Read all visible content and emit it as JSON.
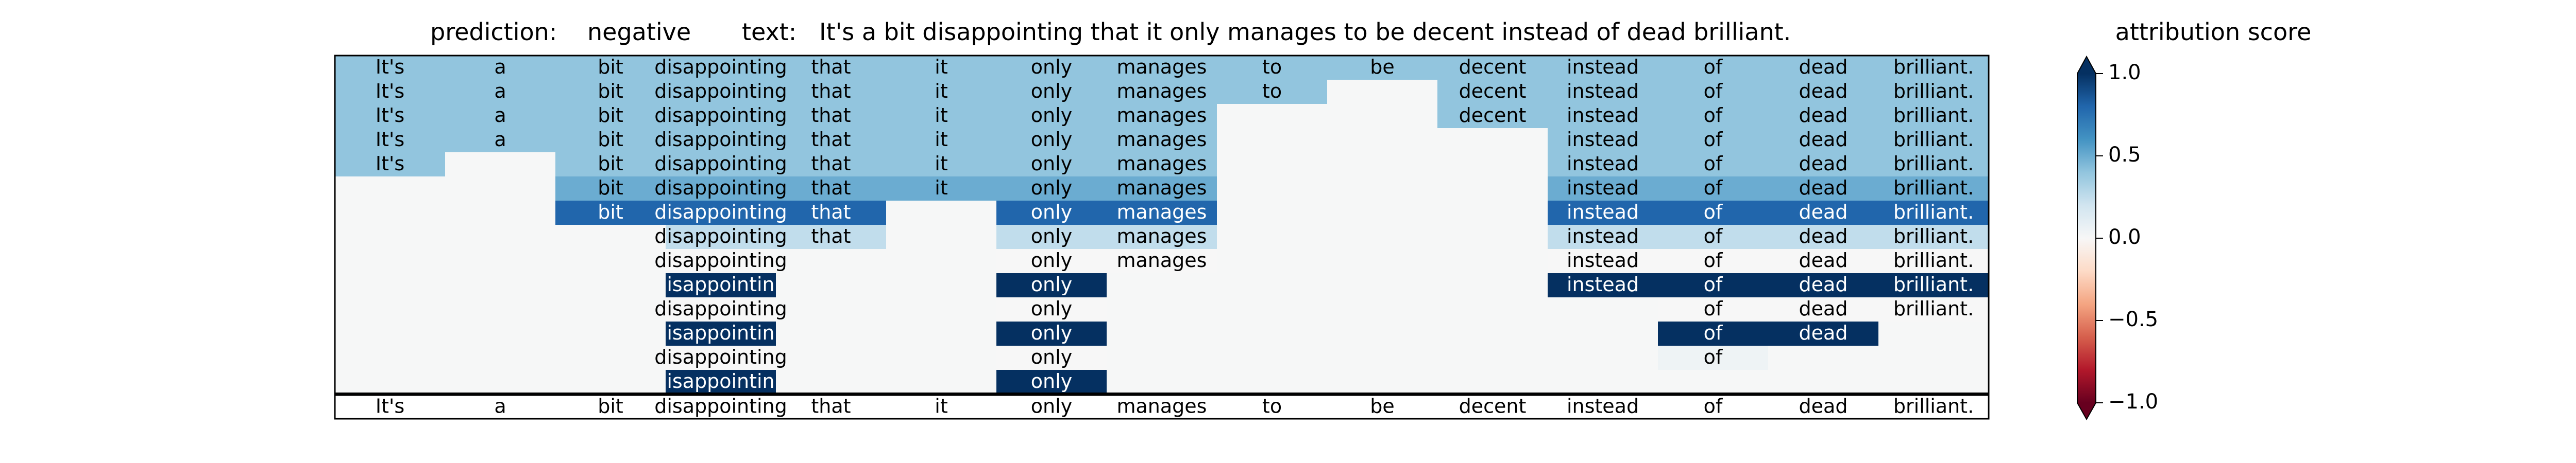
{
  "chart_data": {
    "type": "heatmap",
    "header": {
      "prediction_label": "prediction:",
      "prediction": "negative",
      "text_label": "text:",
      "text": "It's a bit disappointing that it only manages to be decent instead of dead brilliant.",
      "colorbar_title": "attribution score"
    },
    "tokens": [
      "It's",
      "a",
      "bit",
      "disappointing",
      "that",
      "it",
      "only",
      "manages",
      "to",
      "be",
      "decent",
      "instead",
      "of",
      "dead",
      "brilliant."
    ],
    "rows": [
      [
        {
          "c": 0,
          "t": "It's",
          "v": 0.4
        },
        {
          "c": 1,
          "t": "a",
          "v": 0.4
        },
        {
          "c": 2,
          "t": "bit",
          "v": 0.4
        },
        {
          "c": 3,
          "t": "disappointing",
          "v": 0.4
        },
        {
          "c": 4,
          "t": "that",
          "v": 0.4
        },
        {
          "c": 5,
          "t": "it",
          "v": 0.4
        },
        {
          "c": 6,
          "t": "only",
          "v": 0.4
        },
        {
          "c": 7,
          "t": "manages",
          "v": 0.4
        },
        {
          "c": 8,
          "t": "to",
          "v": 0.4
        },
        {
          "c": 9,
          "t": "be",
          "v": 0.4
        },
        {
          "c": 10,
          "t": "decent",
          "v": 0.4
        },
        {
          "c": 11,
          "t": "instead",
          "v": 0.4
        },
        {
          "c": 12,
          "t": "of",
          "v": 0.4
        },
        {
          "c": 13,
          "t": "dead",
          "v": 0.4
        },
        {
          "c": 14,
          "t": "brilliant.",
          "v": 0.4
        }
      ],
      [
        {
          "c": 0,
          "t": "It's",
          "v": 0.4
        },
        {
          "c": 1,
          "t": "a",
          "v": 0.4
        },
        {
          "c": 2,
          "t": "bit",
          "v": 0.4
        },
        {
          "c": 3,
          "t": "disappointing",
          "v": 0.4
        },
        {
          "c": 4,
          "t": "that",
          "v": 0.4
        },
        {
          "c": 5,
          "t": "it",
          "v": 0.4
        },
        {
          "c": 6,
          "t": "only",
          "v": 0.4
        },
        {
          "c": 7,
          "t": "manages",
          "v": 0.4
        },
        {
          "c": 8,
          "t": "to",
          "v": 0.4
        },
        {
          "c": 10,
          "t": "decent",
          "v": 0.4
        },
        {
          "c": 11,
          "t": "instead",
          "v": 0.4
        },
        {
          "c": 12,
          "t": "of",
          "v": 0.4
        },
        {
          "c": 13,
          "t": "dead",
          "v": 0.4
        },
        {
          "c": 14,
          "t": "brilliant.",
          "v": 0.4
        }
      ],
      [
        {
          "c": 0,
          "t": "It's",
          "v": 0.4
        },
        {
          "c": 1,
          "t": "a",
          "v": 0.4
        },
        {
          "c": 2,
          "t": "bit",
          "v": 0.4
        },
        {
          "c": 3,
          "t": "disappointing",
          "v": 0.4
        },
        {
          "c": 4,
          "t": "that",
          "v": 0.4
        },
        {
          "c": 5,
          "t": "it",
          "v": 0.4
        },
        {
          "c": 6,
          "t": "only",
          "v": 0.4
        },
        {
          "c": 7,
          "t": "manages",
          "v": 0.4
        },
        {
          "c": 10,
          "t": "decent",
          "v": 0.4
        },
        {
          "c": 11,
          "t": "instead",
          "v": 0.4
        },
        {
          "c": 12,
          "t": "of",
          "v": 0.4
        },
        {
          "c": 13,
          "t": "dead",
          "v": 0.4
        },
        {
          "c": 14,
          "t": "brilliant.",
          "v": 0.4
        }
      ],
      [
        {
          "c": 0,
          "t": "It's",
          "v": 0.4
        },
        {
          "c": 1,
          "t": "a",
          "v": 0.4
        },
        {
          "c": 2,
          "t": "bit",
          "v": 0.4
        },
        {
          "c": 3,
          "t": "disappointing",
          "v": 0.4
        },
        {
          "c": 4,
          "t": "that",
          "v": 0.4
        },
        {
          "c": 5,
          "t": "it",
          "v": 0.4
        },
        {
          "c": 6,
          "t": "only",
          "v": 0.4
        },
        {
          "c": 7,
          "t": "manages",
          "v": 0.4
        },
        {
          "c": 11,
          "t": "instead",
          "v": 0.4
        },
        {
          "c": 12,
          "t": "of",
          "v": 0.4
        },
        {
          "c": 13,
          "t": "dead",
          "v": 0.4
        },
        {
          "c": 14,
          "t": "brilliant.",
          "v": 0.4
        }
      ],
      [
        {
          "c": 0,
          "t": "It's",
          "v": 0.4
        },
        {
          "c": 2,
          "t": "bit",
          "v": 0.4
        },
        {
          "c": 3,
          "t": "disappointing",
          "v": 0.4
        },
        {
          "c": 4,
          "t": "that",
          "v": 0.4
        },
        {
          "c": 5,
          "t": "it",
          "v": 0.4
        },
        {
          "c": 6,
          "t": "only",
          "v": 0.4
        },
        {
          "c": 7,
          "t": "manages",
          "v": 0.4
        },
        {
          "c": 11,
          "t": "instead",
          "v": 0.4
        },
        {
          "c": 12,
          "t": "of",
          "v": 0.4
        },
        {
          "c": 13,
          "t": "dead",
          "v": 0.4
        },
        {
          "c": 14,
          "t": "brilliant.",
          "v": 0.4
        }
      ],
      [
        {
          "c": 2,
          "t": "bit",
          "v": 0.5
        },
        {
          "c": 3,
          "t": "disappointing",
          "v": 0.5
        },
        {
          "c": 4,
          "t": "that",
          "v": 0.5
        },
        {
          "c": 5,
          "t": "it",
          "v": 0.5
        },
        {
          "c": 6,
          "t": "only",
          "v": 0.5
        },
        {
          "c": 7,
          "t": "manages",
          "v": 0.5
        },
        {
          "c": 11,
          "t": "instead",
          "v": 0.5
        },
        {
          "c": 12,
          "t": "of",
          "v": 0.5
        },
        {
          "c": 13,
          "t": "dead",
          "v": 0.5
        },
        {
          "c": 14,
          "t": "brilliant.",
          "v": 0.5
        }
      ],
      [
        {
          "c": 2,
          "t": "bit",
          "v": 0.8
        },
        {
          "c": 3,
          "t": "disappointing",
          "v": 0.8
        },
        {
          "c": 4,
          "t": "that",
          "v": 0.8
        },
        {
          "c": 6,
          "t": "only",
          "v": 0.8
        },
        {
          "c": 7,
          "t": "manages",
          "v": 0.8
        },
        {
          "c": 11,
          "t": "instead",
          "v": 0.8
        },
        {
          "c": 12,
          "t": "of",
          "v": 0.8
        },
        {
          "c": 13,
          "t": "dead",
          "v": 0.8
        },
        {
          "c": 14,
          "t": "brilliant.",
          "v": 0.8
        }
      ],
      [
        {
          "c": 3,
          "t": "disappointing",
          "v": 0.25
        },
        {
          "c": 4,
          "t": "that",
          "v": 0.25
        },
        {
          "c": 6,
          "t": "only",
          "v": 0.25
        },
        {
          "c": 7,
          "t": "manages",
          "v": 0.25
        },
        {
          "c": 11,
          "t": "instead",
          "v": 0.25
        },
        {
          "c": 12,
          "t": "of",
          "v": 0.25
        },
        {
          "c": 13,
          "t": "dead",
          "v": 0.25
        },
        {
          "c": 14,
          "t": "brilliant.",
          "v": 0.25
        }
      ],
      [
        {
          "c": 3,
          "t": "disappointing",
          "v": 0.0
        },
        {
          "c": 6,
          "t": "only",
          "v": 0.0
        },
        {
          "c": 7,
          "t": "manages",
          "v": 0.0
        },
        {
          "c": 11,
          "t": "instead",
          "v": 0.0
        },
        {
          "c": 12,
          "t": "of",
          "v": 0.0
        },
        {
          "c": 13,
          "t": "dead",
          "v": 0.0
        },
        {
          "c": 14,
          "t": "brilliant.",
          "v": 0.0
        }
      ],
      [
        {
          "c": 3,
          "t": "isappointin",
          "v": 1.0
        },
        {
          "c": 6,
          "t": "only",
          "v": 1.0
        },
        {
          "c": 11,
          "t": "instead",
          "v": 1.0
        },
        {
          "c": 12,
          "t": "of",
          "v": 1.0
        },
        {
          "c": 13,
          "t": "dead",
          "v": 1.0
        },
        {
          "c": 14,
          "t": "brilliant.",
          "v": 1.0
        }
      ],
      [
        {
          "c": 3,
          "t": "disappointing",
          "v": 0.0
        },
        {
          "c": 6,
          "t": "only",
          "v": 0.0
        },
        {
          "c": 12,
          "t": "of",
          "v": 0.0
        },
        {
          "c": 13,
          "t": "dead",
          "v": 0.0
        },
        {
          "c": 14,
          "t": "brilliant.",
          "v": 0.0
        }
      ],
      [
        {
          "c": 3,
          "t": "isappointin",
          "v": 1.0
        },
        {
          "c": 6,
          "t": "only",
          "v": 1.0
        },
        {
          "c": 12,
          "t": "of",
          "v": 1.0
        },
        {
          "c": 13,
          "t": "dead",
          "v": 1.0
        }
      ],
      [
        {
          "c": 3,
          "t": "disappointing",
          "v": 0.0
        },
        {
          "c": 6,
          "t": "only",
          "v": 0.0
        },
        {
          "c": 12,
          "t": "of",
          "v": 0.05
        }
      ],
      [
        {
          "c": 3,
          "t": "isappointin",
          "v": 1.0
        },
        {
          "c": 6,
          "t": "only",
          "v": 1.0
        }
      ]
    ],
    "footer_tokens": [
      "It's",
      "a",
      "bit",
      "disappointing",
      "that",
      "it",
      "only",
      "manages",
      "to",
      "be",
      "decent",
      "instead",
      "of",
      "dead",
      "brilliant."
    ],
    "colorbar": {
      "min": -1.0,
      "max": 1.0,
      "ticks": [
        1.0,
        0.5,
        0.0,
        -0.5,
        -1.0
      ],
      "tick_labels": [
        "1.0",
        "0.5",
        "0.0",
        "−0.5",
        "−1.0"
      ],
      "colormap": "RdBu",
      "extend": "both"
    }
  }
}
